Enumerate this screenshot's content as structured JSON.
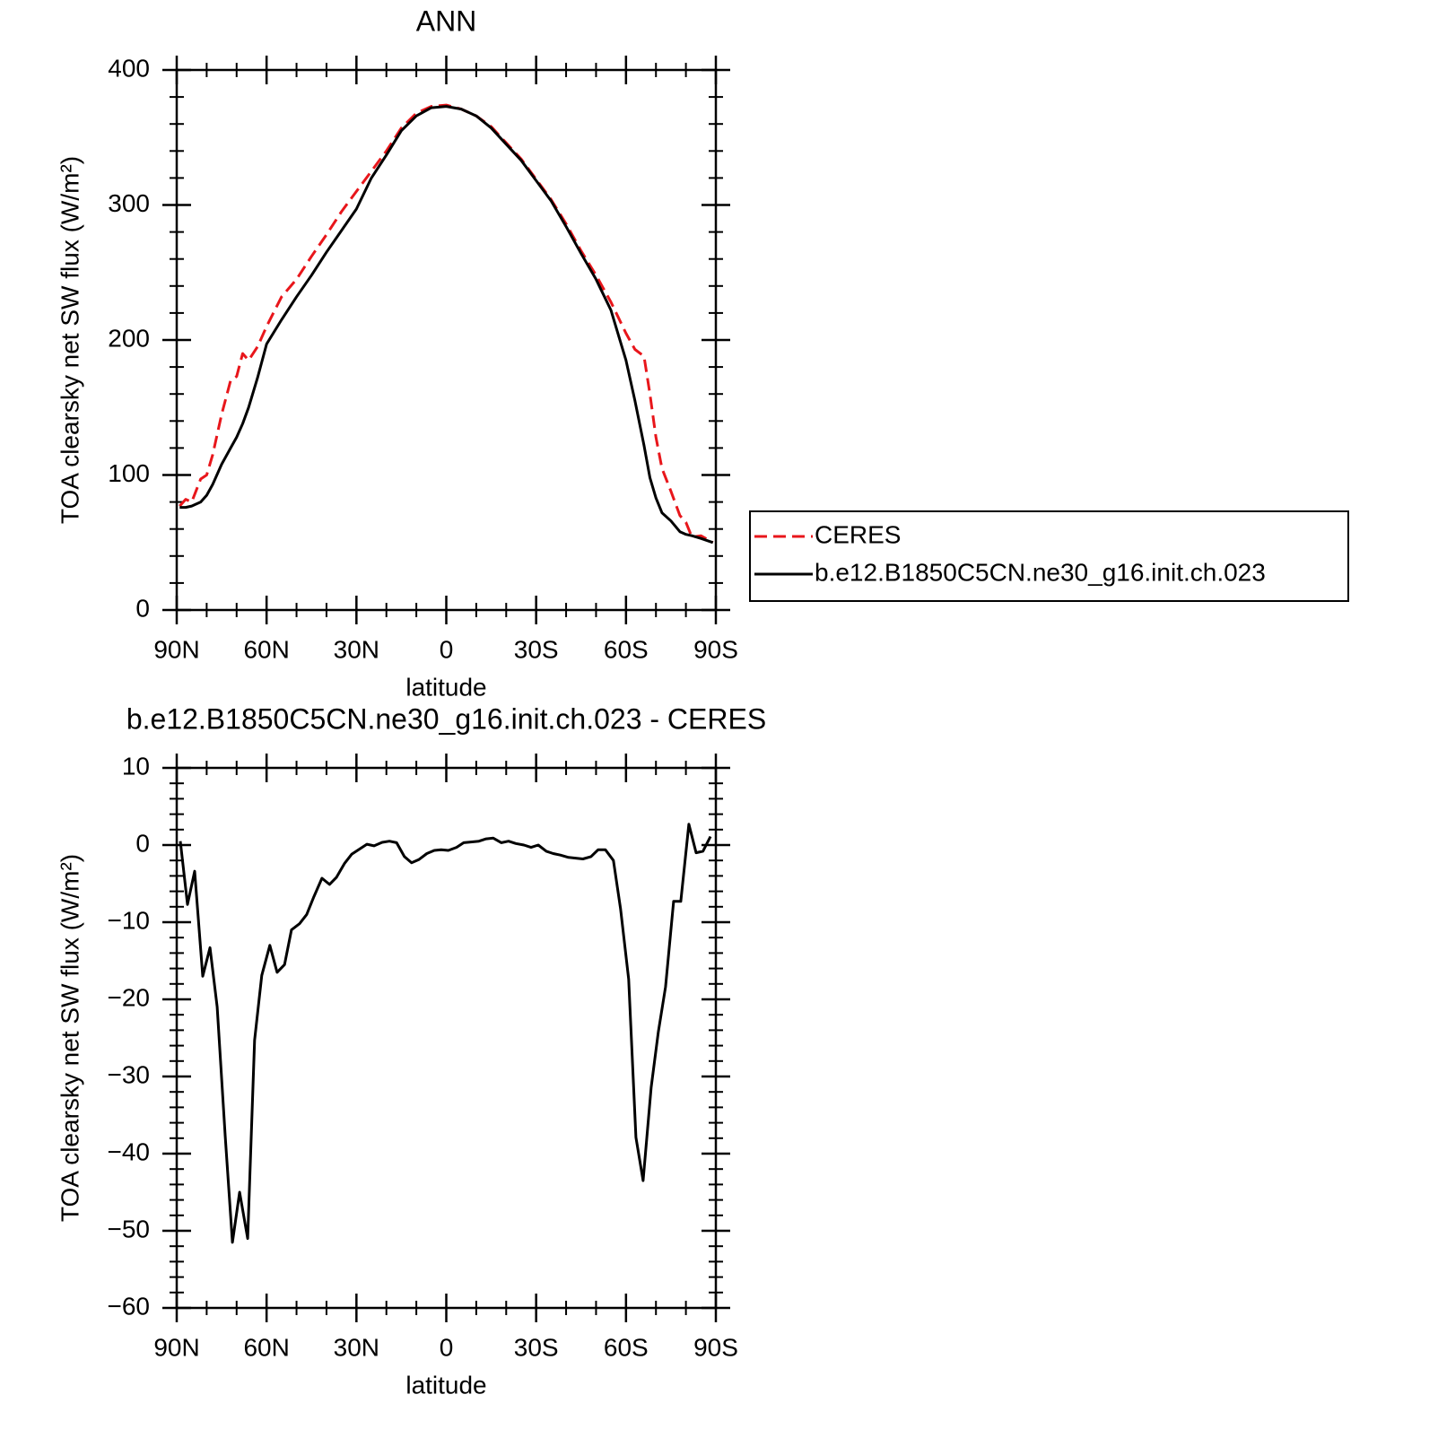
{
  "chart_data": [
    {
      "type": "line",
      "title": "ANN",
      "xlabel": "latitude",
      "ylabel": "TOA clearsky net SW flux (W/m²)",
      "x": [
        89,
        87,
        85,
        82,
        80,
        78,
        75,
        72,
        70,
        68,
        66,
        63,
        60,
        55,
        50,
        45,
        40,
        35,
        30,
        25,
        20,
        15,
        10,
        5,
        0,
        -5,
        -10,
        -15,
        -20,
        -25,
        -30,
        -35,
        -40,
        -45,
        -50,
        -55,
        -60,
        -63,
        -66,
        -68,
        -70,
        -72,
        -75,
        -78,
        -80,
        -82,
        -85,
        -89
      ],
      "series": [
        {
          "name": "CERES",
          "color": "#e8161b",
          "linestyle": "dashed",
          "values": [
            77,
            82,
            80,
            97,
            100,
            115,
            145,
            170,
            173,
            190,
            185,
            195,
            210,
            232,
            245,
            262,
            278,
            295,
            310,
            325,
            340,
            357,
            368,
            373,
            374,
            371,
            366,
            358,
            346,
            334,
            319,
            304,
            286,
            266,
            248,
            228,
            205,
            193,
            188,
            160,
            128,
            105,
            88,
            70,
            65,
            54,
            55,
            50
          ]
        },
        {
          "name": "b.e12.B1850C5CN.ne30_g16.init.ch.023",
          "color": "#000000",
          "linestyle": "solid",
          "values": [
            76,
            76,
            77,
            80,
            85,
            93,
            108,
            120,
            128,
            138,
            150,
            172,
            197,
            215,
            232,
            248,
            265,
            281,
            297,
            320,
            337,
            355,
            366,
            372,
            373,
            371,
            366,
            357,
            345,
            333,
            318,
            303,
            284,
            264,
            245,
            222,
            185,
            155,
            122,
            98,
            83,
            72,
            66,
            58,
            56,
            55,
            53,
            50
          ]
        }
      ],
      "xlim": [
        90,
        -90
      ],
      "xticks": [
        {
          "value": 90,
          "label": "90N"
        },
        {
          "value": 60,
          "label": "60N"
        },
        {
          "value": 30,
          "label": "30N"
        },
        0,
        {
          "value": -30,
          "label": "30S"
        },
        {
          "value": -60,
          "label": "60S"
        },
        {
          "value": -90,
          "label": "90S"
        }
      ],
      "ylim": [
        0,
        400
      ],
      "yticks": [
        0,
        100,
        200,
        300,
        400
      ],
      "legend": "right"
    },
    {
      "type": "line",
      "title": "b.e12.B1850C5CN.ne30_g16.init.ch.023 - CERES",
      "xlabel": "latitude",
      "ylabel": "TOA clearsky net SW flux (W/m²)",
      "x": [
        88.8,
        86.4,
        84,
        81.3,
        78.9,
        76.5,
        73.8,
        71.4,
        69,
        66.3,
        64,
        61.6,
        58.9,
        56.5,
        54,
        51.7,
        49,
        46.6,
        44.2,
        41.5,
        39,
        36.7,
        34,
        31.6,
        26.5,
        24.1,
        21.4,
        19,
        16.6,
        14,
        11.6,
        9.2,
        6.5,
        4,
        1.7,
        -0.7,
        -3.4,
        -5.8,
        -8.2,
        -10.9,
        -13.3,
        -15.7,
        -18.4,
        -20.8,
        -23.2,
        -25.9,
        -28.3,
        -30.7,
        -33.4,
        -35.7,
        -38.1,
        -40.8,
        -43.2,
        -45.6,
        -48.3,
        -50.7,
        -53.1,
        -55.8,
        -58.2,
        -60.9,
        -63.3,
        -65.7,
        -68.4,
        -70.8,
        -73.2,
        -75.9,
        -78.3,
        -81,
        -83.4,
        -85.7,
        -88.2
      ],
      "series": [
        {
          "name": "b.e12.B1850C5CN.ne30_g16.init.ch.023 - CERES",
          "color": "#000000",
          "linestyle": "solid",
          "values": [
            0.5,
            -7.7,
            -3.4,
            -17,
            -13.3,
            -21,
            -37.8,
            -51.5,
            -45,
            -51,
            -25.3,
            -16.9,
            -13,
            -16.5,
            -15.5,
            -11,
            -10.2,
            -9,
            -6.7,
            -4.3,
            -5.1,
            -4.2,
            -2.4,
            -1.2,
            0.1,
            -0.1,
            0.35,
            0.5,
            0.3,
            -1.5,
            -2.3,
            -1.9,
            -1.1,
            -0.7,
            -0.6,
            -0.7,
            -0.3,
            0.3,
            0.4,
            0.5,
            0.8,
            0.9,
            0.3,
            0.5,
            0.2,
            0,
            -0.3,
            0,
            -0.8,
            -1.1,
            -1.3,
            -1.6,
            -1.7,
            -1.8,
            -1.5,
            -0.6,
            -0.6,
            -2,
            -8.3,
            -17.4,
            -37.9,
            -43.5,
            -31.4,
            -24.2,
            -18.4,
            -7.3,
            -7.3,
            2.7,
            -1,
            -0.8,
            1.1
          ]
        }
      ],
      "xlim": [
        90,
        -90
      ],
      "xticks": [
        {
          "value": 90,
          "label": "90N"
        },
        {
          "value": 60,
          "label": "60N"
        },
        {
          "value": 30,
          "label": "30N"
        },
        0,
        {
          "value": -30,
          "label": "30S"
        },
        {
          "value": -60,
          "label": "60S"
        },
        {
          "value": -90,
          "label": "90S"
        }
      ],
      "ylim": [
        -60,
        10
      ],
      "yticks": [
        -60,
        -50,
        -40,
        -30,
        -20,
        -10,
        0,
        10
      ]
    }
  ]
}
